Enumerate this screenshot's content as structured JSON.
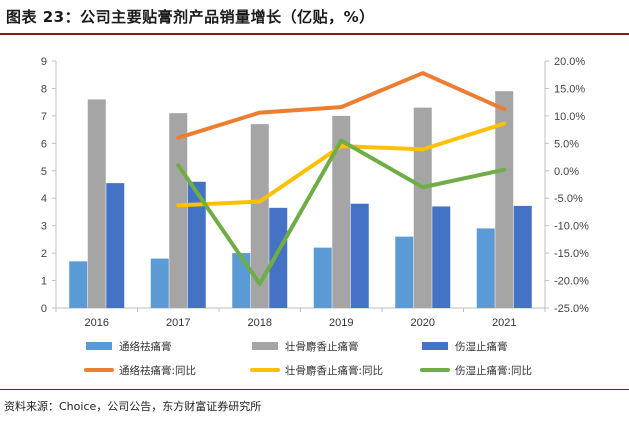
{
  "title": "图表 23：公司主要贴膏剂产品销量增长（亿贴，%）",
  "source": "资料来源：Choice，公司公告，东方财富证券研究所",
  "colors": {
    "tong_bar": "#5b9bd5",
    "zhuang_bar": "#a5a5a5",
    "shang_bar": "#4472c4",
    "tong_line": "#ed7d31",
    "zhuang_line": "#ffc000",
    "shang_line": "#70ad47"
  },
  "chart_data": {
    "type": "bar",
    "categories": [
      "2016",
      "2017",
      "2018",
      "2019",
      "2020",
      "2021"
    ],
    "ylim_left": [
      0,
      9
    ],
    "ylim_right": [
      -25,
      20
    ],
    "left_ticks": [
      "0",
      "1",
      "2",
      "3",
      "4",
      "5",
      "6",
      "7",
      "8",
      "9"
    ],
    "right_ticks": [
      "-25.0%",
      "-20.0%",
      "-15.0%",
      "-10.0%",
      "-5.0%",
      "0.0%",
      "5.0%",
      "10.0%",
      "15.0%",
      "20.0%"
    ],
    "series": [
      {
        "name": "通络祛痛膏",
        "kind": "bar",
        "axis": "left",
        "values": [
          1.7,
          1.8,
          2.0,
          2.2,
          2.6,
          2.9
        ]
      },
      {
        "name": "壮骨麝香止痛膏",
        "kind": "bar",
        "axis": "left",
        "values": [
          7.6,
          7.1,
          6.7,
          7.0,
          7.3,
          7.9
        ]
      },
      {
        "name": "伤湿止痛膏",
        "kind": "bar",
        "axis": "left",
        "values": [
          4.55,
          4.6,
          3.65,
          3.8,
          3.7,
          3.72
        ]
      },
      {
        "name": "通络祛痛膏:同比",
        "kind": "line",
        "axis": "right",
        "values": [
          null,
          6.0,
          10.6,
          11.6,
          17.8,
          11.2
        ]
      },
      {
        "name": "壮骨麝香止痛膏:同比",
        "kind": "line",
        "axis": "right",
        "values": [
          null,
          -6.3,
          -5.6,
          4.5,
          3.9,
          8.6
        ]
      },
      {
        "name": "伤湿止痛膏:同比",
        "kind": "line",
        "axis": "right",
        "values": [
          null,
          1.0,
          -20.6,
          5.5,
          -3.0,
          0.2
        ]
      }
    ],
    "legend_position": "bottom"
  }
}
